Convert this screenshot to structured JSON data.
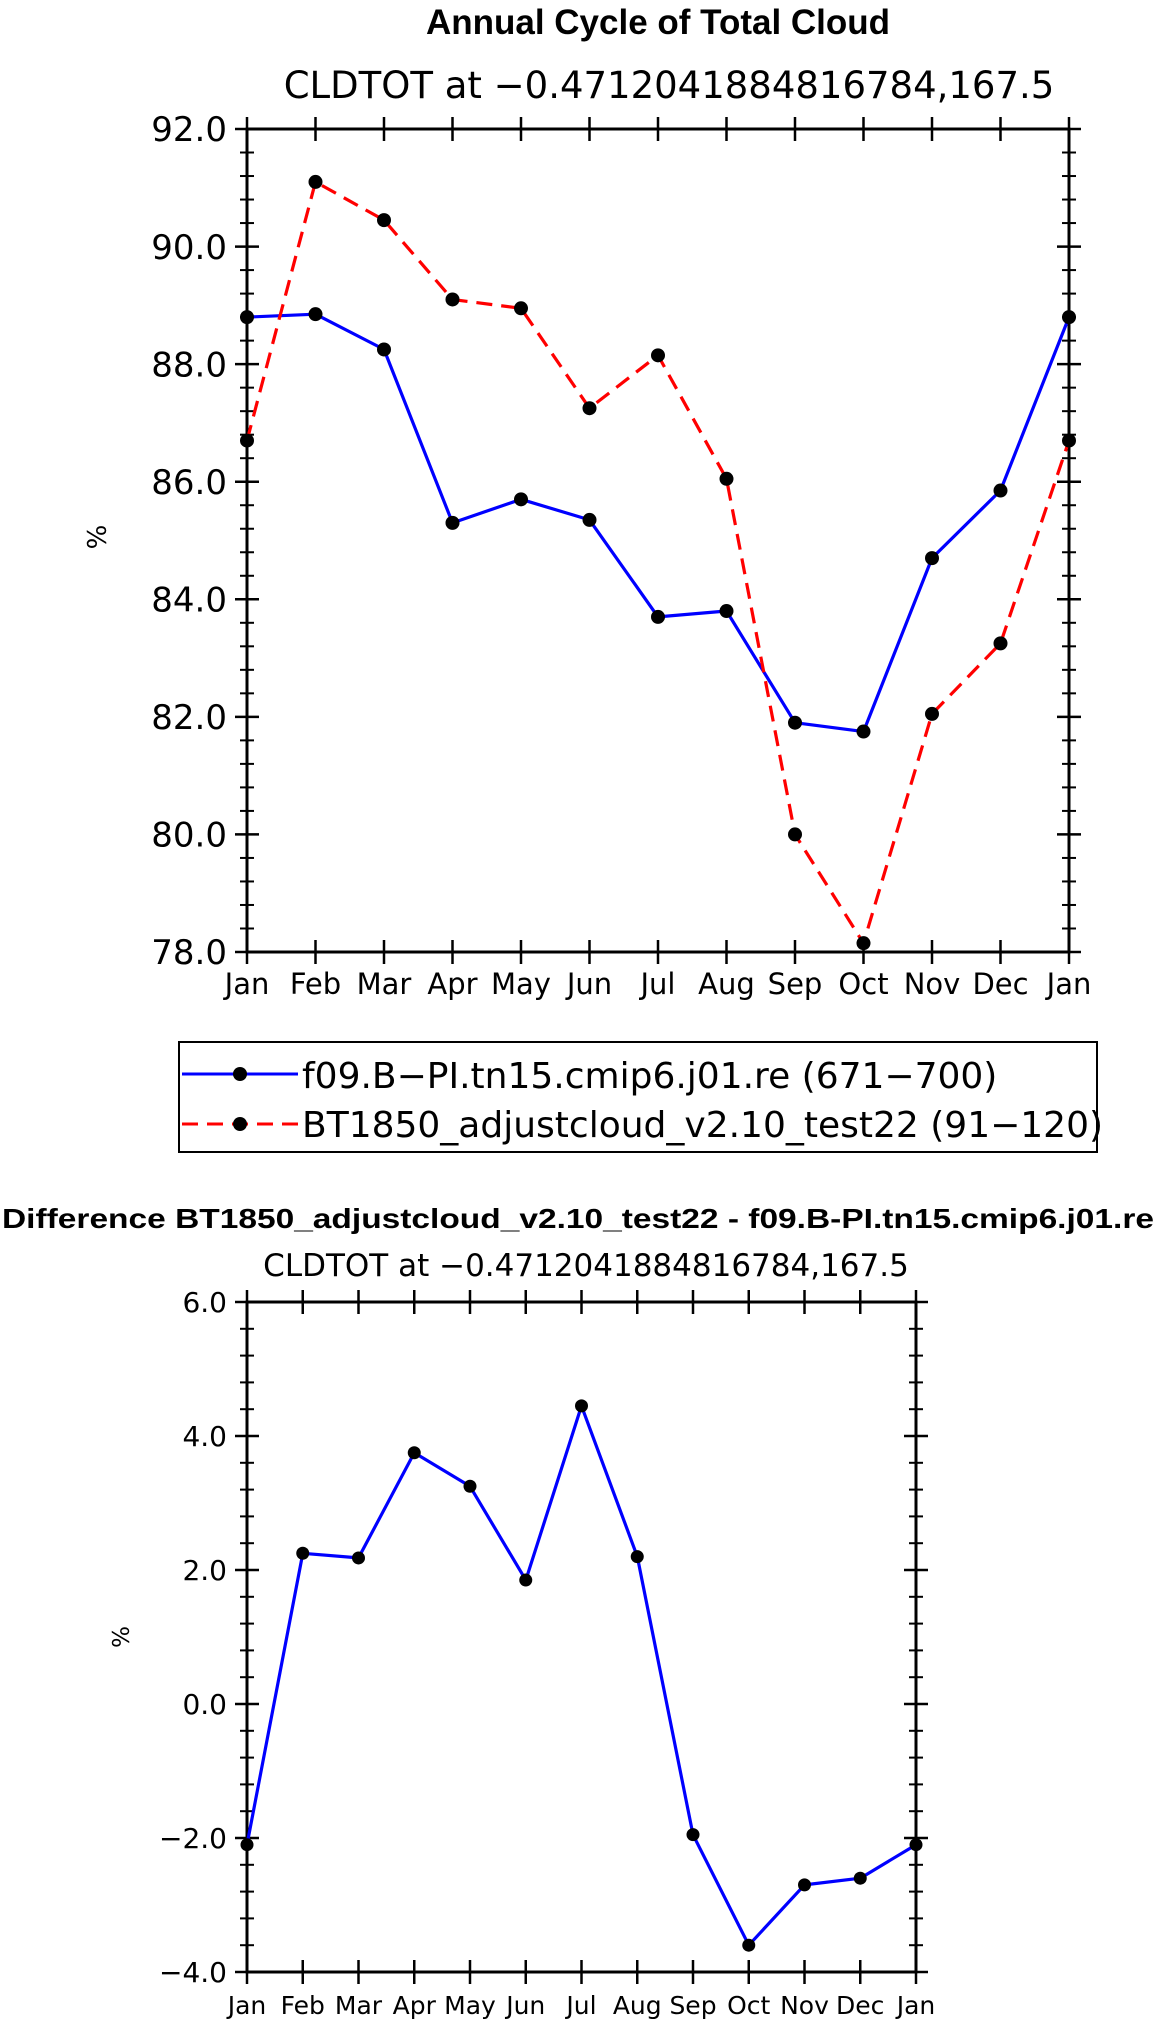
{
  "chart_data": [
    {
      "type": "line",
      "title": "Annual Cycle of Total Cloud",
      "subtitle": "CLDTOT at −0.4712041884816784,167.5",
      "xlabel": "",
      "ylabel": "%",
      "categories": [
        "Jan",
        "Feb",
        "Mar",
        "Apr",
        "May",
        "Jun",
        "Jul",
        "Aug",
        "Sep",
        "Oct",
        "Nov",
        "Dec",
        "Jan"
      ],
      "ylim": [
        78.0,
        92.0
      ],
      "yticks": [
        "78.0",
        "80.0",
        "82.0",
        "84.0",
        "86.0",
        "88.0",
        "90.0",
        "92.0"
      ],
      "grid": false,
      "legend_position": "below",
      "series": [
        {
          "name": "f09.B−PI.tn15.cmip6.j01.re (671−700)",
          "color": "#0000ff",
          "style": "solid",
          "values": [
            88.8,
            88.85,
            88.25,
            85.3,
            85.7,
            85.35,
            83.7,
            83.8,
            81.9,
            81.75,
            84.7,
            85.85,
            88.8
          ]
        },
        {
          "name": "BT1850_adjustcloud_v2.10_test22 (91−120)",
          "color": "#ff0000",
          "style": "dashed",
          "values": [
            86.7,
            91.1,
            90.45,
            89.1,
            88.95,
            87.25,
            88.15,
            86.05,
            80.0,
            78.15,
            82.05,
            83.25,
            86.7
          ]
        }
      ]
    },
    {
      "type": "line",
      "title": "Difference BT1850_adjustcloud_v2.10_test22 - f09.B-PI.tn15.cmip6.j01.re",
      "subtitle": "CLDTOT at −0.4712041884816784,167.5",
      "xlabel": "",
      "ylabel": "%",
      "categories": [
        "Jan",
        "Feb",
        "Mar",
        "Apr",
        "May",
        "Jun",
        "Jul",
        "Aug",
        "Sep",
        "Oct",
        "Nov",
        "Dec",
        "Jan"
      ],
      "ylim": [
        -4.0,
        6.0
      ],
      "yticks": [
        "−4.0",
        "−2.0",
        "0.0",
        "2.0",
        "4.0",
        "6.0"
      ],
      "grid": false,
      "series": [
        {
          "name": "Difference",
          "color": "#0000ff",
          "style": "solid",
          "values": [
            -2.1,
            2.25,
            2.18,
            3.75,
            3.25,
            1.85,
            4.45,
            2.2,
            -1.95,
            -3.6,
            -2.7,
            -2.6,
            -2.1
          ]
        }
      ]
    }
  ]
}
